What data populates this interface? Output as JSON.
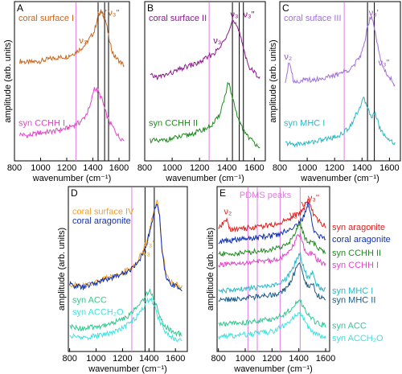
{
  "chart_data": [
    {
      "type": "line",
      "panel": "A",
      "xlabel": "wavenumber (cm⁻¹)",
      "ylabel": "amplitude (arb. units)",
      "xlim": [
        800,
        1680
      ],
      "ylim": [
        0,
        1
      ],
      "xticks": [
        "800",
        "1000",
        "1200",
        "1400",
        "1600"
      ],
      "vlines": [
        {
          "x": 1270,
          "color": "#e07be0"
        },
        {
          "x": 1440,
          "color": "#000000"
        },
        {
          "x": 1490,
          "color": "#000000"
        },
        {
          "x": 1520,
          "color": "#000000"
        }
      ],
      "annotations": [
        {
          "text": "ν₃'",
          "x": 1470,
          "y": 0.97,
          "color": "#b0621f"
        },
        {
          "text": "ν₃''",
          "x": 1560,
          "y": 0.97,
          "color": "#b0621f"
        },
        {
          "text": "ν₃",
          "x": 1325,
          "y": 0.78,
          "color": "#b0621f"
        }
      ],
      "series": [
        {
          "name": "coral surface I",
          "color": "#c8661f",
          "x": [
            840,
            900,
            1000,
            1100,
            1200,
            1250,
            1300,
            1340,
            1380,
            1410,
            1440,
            1470,
            1500,
            1530,
            1560,
            1600,
            1640
          ],
          "y": [
            0.66,
            0.65,
            0.66,
            0.68,
            0.69,
            0.71,
            0.74,
            0.77,
            0.82,
            0.86,
            0.97,
            1.0,
            0.93,
            0.78,
            0.7,
            0.66,
            0.63
          ]
        },
        {
          "name": "syn CCHH I",
          "color": "#e046c8",
          "x": [
            840,
            900,
            1000,
            1100,
            1200,
            1250,
            1300,
            1340,
            1380,
            1410,
            1440,
            1470,
            1500,
            1530,
            1560,
            1600,
            1640
          ],
          "y": [
            0.16,
            0.15,
            0.17,
            0.18,
            0.2,
            0.22,
            0.24,
            0.28,
            0.35,
            0.48,
            0.45,
            0.4,
            0.3,
            0.24,
            0.2,
            0.14,
            0.12
          ]
        }
      ]
    },
    {
      "type": "line",
      "panel": "B",
      "xlabel": "wavenumber (cm⁻¹)",
      "ylabel": "",
      "xlim": [
        800,
        1680
      ],
      "ylim": [
        0,
        1
      ],
      "xticks": [
        "800",
        "1000",
        "1200",
        "1400",
        "1600"
      ],
      "vlines": [
        {
          "x": 1270,
          "color": "#e07be0"
        },
        {
          "x": 1440,
          "color": "#000000"
        },
        {
          "x": 1490,
          "color": "#000000"
        },
        {
          "x": 1520,
          "color": "#000000"
        }
      ],
      "annotations": [
        {
          "text": "ν₃'",
          "x": 1460,
          "y": 0.96,
          "color": "#800080"
        },
        {
          "text": "ν₃''",
          "x": 1560,
          "y": 0.96,
          "color": "#800080"
        },
        {
          "text": "ν₃",
          "x": 1330,
          "y": 0.78,
          "color": "#800080"
        }
      ],
      "series": [
        {
          "name": "coral surface II",
          "color": "#8b1a8b",
          "x": [
            840,
            900,
            1000,
            1100,
            1200,
            1250,
            1300,
            1340,
            1380,
            1410,
            1440,
            1470,
            1500,
            1530,
            1560,
            1600,
            1640
          ],
          "y": [
            0.56,
            0.55,
            0.58,
            0.62,
            0.65,
            0.68,
            0.71,
            0.74,
            0.8,
            0.87,
            0.94,
            0.9,
            0.82,
            0.72,
            0.62,
            0.58,
            0.55
          ]
        },
        {
          "name": "syn CCHH II",
          "color": "#1e8c1e",
          "x": [
            840,
            900,
            1000,
            1100,
            1200,
            1250,
            1300,
            1340,
            1380,
            1410,
            1440,
            1470,
            1500,
            1530,
            1560,
            1600,
            1640
          ],
          "y": [
            0.12,
            0.11,
            0.13,
            0.15,
            0.18,
            0.2,
            0.23,
            0.28,
            0.4,
            0.52,
            0.4,
            0.3,
            0.22,
            0.18,
            0.14,
            0.1,
            0.08
          ]
        }
      ]
    },
    {
      "type": "line",
      "panel": "C",
      "xlabel": "wavenumber (cm⁻¹)",
      "ylabel": "amplitude (arb. units)",
      "xlim": [
        800,
        1680
      ],
      "ylim": [
        0,
        1
      ],
      "xticks": [
        "800",
        "1000",
        "1200",
        "1400",
        "1600"
      ],
      "vlines": [
        {
          "x": 1270,
          "color": "#e07be0"
        },
        {
          "x": 1440,
          "color": "#000000"
        },
        {
          "x": 1490,
          "color": "#000000"
        }
      ],
      "annotations": [
        {
          "text": "ν₃'",
          "x": 1485,
          "y": 0.97,
          "color": "#9a50c8"
        },
        {
          "text": "ν₃''",
          "x": 1560,
          "y": 0.63,
          "color": "#9a50c8"
        },
        {
          "text": "ν₂",
          "x": 860,
          "y": 0.67,
          "color": "#9a50c8"
        }
      ],
      "series": [
        {
          "name": "coral suface III",
          "color": "#a070d8",
          "x": [
            840,
            870,
            900,
            1000,
            1100,
            1200,
            1250,
            1300,
            1340,
            1380,
            1410,
            1440,
            1470,
            1500,
            1530,
            1560,
            1600,
            1640
          ],
          "y": [
            0.52,
            0.67,
            0.52,
            0.53,
            0.54,
            0.56,
            0.58,
            0.6,
            0.63,
            0.68,
            0.75,
            0.9,
            0.98,
            0.85,
            0.68,
            0.6,
            0.55,
            0.5
          ]
        },
        {
          "name": "syn MHC I",
          "color": "#2ab8c8",
          "x": [
            840,
            900,
            1000,
            1100,
            1200,
            1250,
            1300,
            1340,
            1380,
            1410,
            1440,
            1470,
            1500,
            1530,
            1560,
            1600,
            1640
          ],
          "y": [
            0.1,
            0.09,
            0.1,
            0.12,
            0.14,
            0.16,
            0.2,
            0.26,
            0.34,
            0.4,
            0.35,
            0.28,
            0.3,
            0.2,
            0.16,
            0.12,
            0.1
          ]
        }
      ]
    },
    {
      "type": "line",
      "panel": "D",
      "xlabel": "wavenumber (cm⁻¹)",
      "ylabel": "amplitude (arb. units)",
      "xlim": [
        790,
        1690
      ],
      "ylim": [
        0,
        1
      ],
      "xticks": [
        "800",
        "1000",
        "1200",
        "1400",
        "1600"
      ],
      "vlines": [
        {
          "x": 1270,
          "color": "#e07be0"
        },
        {
          "x": 1370,
          "color": "#000000"
        },
        {
          "x": 1440,
          "color": "#000000"
        }
      ],
      "annotations": [
        {
          "text": "ν₃'",
          "x": 1400,
          "y": 0.67,
          "color": "#e09a10"
        },
        {
          "text": "ν₃",
          "x": 1380,
          "y": 0.61,
          "color": "#e09a10"
        }
      ],
      "series": [
        {
          "name": "coral surface IV",
          "color": "#f0a020",
          "x": [
            800,
            900,
            1000,
            1100,
            1200,
            1250,
            1300,
            1340,
            1380,
            1410,
            1440,
            1460,
            1480,
            1500,
            1530,
            1560,
            1600,
            1650
          ],
          "y": [
            0.42,
            0.41,
            0.44,
            0.47,
            0.5,
            0.52,
            0.56,
            0.62,
            0.7,
            0.8,
            0.92,
            0.97,
            0.88,
            0.65,
            0.48,
            0.44,
            0.42,
            0.4
          ]
        },
        {
          "name": "coral aragonite",
          "color": "#1030b0",
          "x": [
            800,
            900,
            1000,
            1100,
            1200,
            1250,
            1300,
            1340,
            1380,
            1410,
            1440,
            1460,
            1480,
            1500,
            1530,
            1560,
            1600,
            1650
          ],
          "y": [
            0.42,
            0.4,
            0.43,
            0.46,
            0.49,
            0.51,
            0.55,
            0.6,
            0.68,
            0.78,
            0.9,
            0.96,
            0.86,
            0.62,
            0.46,
            0.43,
            0.41,
            0.39
          ]
        },
        {
          "name": "syn ACC",
          "color": "#30c890",
          "x": [
            800,
            900,
            1000,
            1100,
            1200,
            1250,
            1300,
            1340,
            1380,
            1410,
            1440,
            1470,
            1500,
            1530,
            1560,
            1600,
            1650
          ],
          "y": [
            0.14,
            0.13,
            0.14,
            0.16,
            0.19,
            0.22,
            0.26,
            0.3,
            0.36,
            0.38,
            0.32,
            0.24,
            0.18,
            0.14,
            0.12,
            0.1,
            0.09
          ]
        },
        {
          "name": "syn ACCH₂O",
          "color": "#40e0e0",
          "x": [
            800,
            900,
            1000,
            1100,
            1200,
            1250,
            1300,
            1340,
            1380,
            1410,
            1440,
            1470,
            1500,
            1530,
            1560,
            1600,
            1650
          ],
          "y": [
            0.08,
            0.07,
            0.08,
            0.1,
            0.13,
            0.16,
            0.2,
            0.25,
            0.3,
            0.33,
            0.28,
            0.2,
            0.14,
            0.1,
            0.08,
            0.06,
            0.05
          ]
        }
      ]
    },
    {
      "type": "line",
      "panel": "E",
      "xlabel": "wavenumber (cm⁻¹)",
      "ylabel": "amplitude (arb. units)",
      "xlim": [
        790,
        1630
      ],
      "ylim": [
        0,
        1
      ],
      "xticks": [
        "800",
        "1000",
        "1200",
        "1400",
        "1600"
      ],
      "vlines": [
        {
          "x": 1020,
          "color": "#e07be0"
        },
        {
          "x": 1090,
          "color": "#e07be0"
        },
        {
          "x": 1260,
          "color": "#e07be0"
        },
        {
          "x": 1410,
          "color": "#e07be0"
        }
      ],
      "peak_label": {
        "text": "PDMS peaks",
        "color": "#e07be0"
      },
      "annotations": [
        {
          "text": "ν₂",
          "x": 870,
          "y": 0.88,
          "color": "#e02020"
        },
        {
          "text": "ν₃",
          "x": 1360,
          "y": 0.86,
          "color": "#e02020"
        },
        {
          "text": "ν₃'",
          "x": 1455,
          "y": 0.93,
          "color": "#e02020"
        },
        {
          "text": "ν₃''",
          "x": 1510,
          "y": 0.97,
          "color": "#e02020"
        }
      ],
      "series": [
        {
          "name": "syn aragonite",
          "color": "#e02020",
          "x": [
            800,
            860,
            880,
            900,
            1000,
            1100,
            1200,
            1250,
            1300,
            1340,
            1380,
            1410,
            1440,
            1470,
            1490,
            1510,
            1540,
            1570,
            1600
          ],
          "y": [
            0.78,
            0.85,
            0.79,
            0.78,
            0.79,
            0.8,
            0.81,
            0.82,
            0.84,
            0.86,
            0.88,
            0.89,
            0.92,
            0.99,
            0.93,
            0.88,
            0.84,
            0.82,
            0.8
          ]
        },
        {
          "name": "coral aragonite",
          "color": "#1030b0",
          "x": [
            800,
            900,
            1000,
            1100,
            1200,
            1250,
            1300,
            1340,
            1380,
            1410,
            1440,
            1470,
            1490,
            1510,
            1540,
            1570,
            1600
          ],
          "y": [
            0.7,
            0.71,
            0.72,
            0.73,
            0.74,
            0.75,
            0.77,
            0.79,
            0.81,
            0.83,
            0.87,
            0.95,
            0.88,
            0.78,
            0.74,
            0.73,
            0.72
          ]
        },
        {
          "name": "syn CCHH II",
          "color": "#1e8c1e",
          "x": [
            800,
            900,
            1000,
            1100,
            1200,
            1250,
            1300,
            1340,
            1380,
            1410,
            1440,
            1470,
            1500,
            1530,
            1560,
            1600
          ],
          "y": [
            0.62,
            0.62,
            0.63,
            0.64,
            0.65,
            0.66,
            0.68,
            0.71,
            0.78,
            0.82,
            0.74,
            0.69,
            0.7,
            0.67,
            0.65,
            0.63
          ]
        },
        {
          "name": "syn CCHH I",
          "color": "#e046c8",
          "x": [
            800,
            900,
            1000,
            1100,
            1200,
            1250,
            1300,
            1340,
            1380,
            1410,
            1440,
            1470,
            1500,
            1530,
            1560,
            1600
          ],
          "y": [
            0.55,
            0.55,
            0.56,
            0.57,
            0.58,
            0.59,
            0.61,
            0.64,
            0.72,
            0.75,
            0.66,
            0.61,
            0.63,
            0.59,
            0.57,
            0.55
          ]
        },
        {
          "name": "syn MHC I",
          "color": "#2ab8c8",
          "x": [
            800,
            900,
            1000,
            1100,
            1200,
            1250,
            1300,
            1340,
            1380,
            1410,
            1440,
            1470,
            1500,
            1530,
            1560,
            1600
          ],
          "y": [
            0.38,
            0.38,
            0.39,
            0.4,
            0.41,
            0.42,
            0.45,
            0.5,
            0.58,
            0.62,
            0.52,
            0.46,
            0.5,
            0.42,
            0.4,
            0.38
          ]
        },
        {
          "name": "syn MHC II",
          "color": "#1a5a8a",
          "x": [
            800,
            900,
            1000,
            1100,
            1200,
            1250,
            1300,
            1340,
            1380,
            1410,
            1440,
            1470,
            1500,
            1530,
            1560,
            1600
          ],
          "y": [
            0.32,
            0.32,
            0.33,
            0.34,
            0.35,
            0.36,
            0.39,
            0.44,
            0.52,
            0.56,
            0.46,
            0.4,
            0.44,
            0.36,
            0.34,
            0.32
          ]
        },
        {
          "name": "syn ACC",
          "color": "#30c890",
          "x": [
            800,
            900,
            1000,
            1100,
            1200,
            1250,
            1300,
            1340,
            1380,
            1410,
            1440,
            1470,
            1500,
            1530,
            1560,
            1600
          ],
          "y": [
            0.16,
            0.16,
            0.17,
            0.18,
            0.19,
            0.21,
            0.23,
            0.26,
            0.3,
            0.31,
            0.27,
            0.22,
            0.19,
            0.17,
            0.16,
            0.15
          ]
        },
        {
          "name": "syn ACCH₂O",
          "color": "#40e0e0",
          "x": [
            800,
            900,
            1000,
            1100,
            1200,
            1250,
            1300,
            1340,
            1380,
            1410,
            1440,
            1470,
            1500,
            1530,
            1560,
            1600
          ],
          "y": [
            0.08,
            0.08,
            0.09,
            0.1,
            0.11,
            0.13,
            0.15,
            0.18,
            0.22,
            0.23,
            0.19,
            0.14,
            0.11,
            0.09,
            0.08,
            0.07
          ]
        }
      ]
    }
  ]
}
